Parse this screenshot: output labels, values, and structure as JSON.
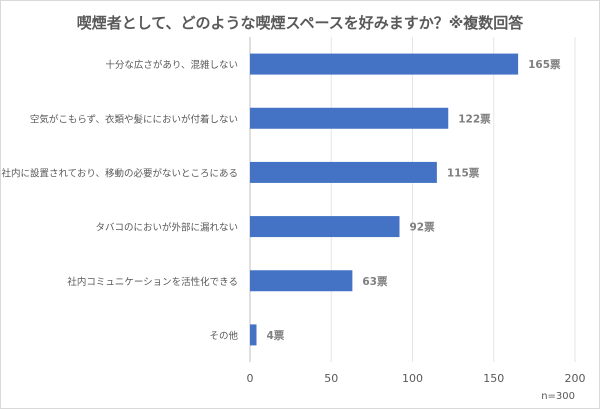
{
  "chart_data": {
    "type": "bar",
    "orientation": "horizontal",
    "title": "喫煙者として、どのような喫煙スペースを好みますか？※複数回答",
    "categories": [
      "十分な広さがあり、混雑しない",
      "空気がこもらず、衣類や髪ににおいが付着しない",
      "社内に設置されており、移動の必要がないところにある",
      "タバコのにおいが外部に漏れない",
      "社内コミュニケーションを活性化できる",
      "その他"
    ],
    "values": [
      165,
      122,
      115,
      92,
      63,
      4
    ],
    "value_labels": [
      "165票",
      "122票",
      "115票",
      "92票",
      "63票",
      "4票"
    ],
    "xlim": [
      0,
      200
    ],
    "xticks": [
      "0",
      "50",
      "100",
      "150",
      "200"
    ],
    "grid": true,
    "note": "n=300",
    "bar_color": "#4472c4"
  }
}
